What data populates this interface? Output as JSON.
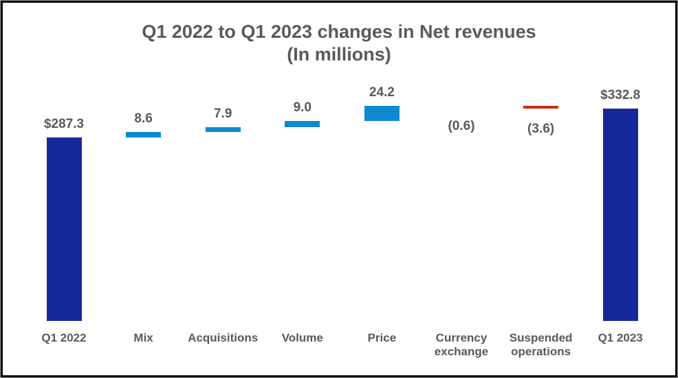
{
  "frame": {
    "background": "#ffffff",
    "border_color": "#0a0a0a"
  },
  "chart_data": {
    "type": "bar",
    "subtype": "waterfall",
    "title": "Q1 2022 to Q1 2023 changes in Net revenues",
    "subtitle": "(In millions)",
    "xlabel": "",
    "ylabel": "",
    "ylim": [
      0,
      360
    ],
    "grid": false,
    "legend": false,
    "axes_visible": false,
    "categories": [
      "Q1 2022",
      "Mix",
      "Acquisitions",
      "Volume",
      "Price",
      "Currency exchange",
      "Suspended operations",
      "Q1 2023"
    ],
    "bars": [
      {
        "category": "Q1 2022",
        "value": 287.3,
        "label": "$287.3",
        "kind": "total"
      },
      {
        "category": "Mix",
        "value": 8.6,
        "label": "8.6",
        "kind": "increase"
      },
      {
        "category": "Acquisitions",
        "value": 7.9,
        "label": "7.9",
        "kind": "increase"
      },
      {
        "category": "Volume",
        "value": 9.0,
        "label": "9.0",
        "kind": "increase"
      },
      {
        "category": "Price",
        "value": 24.2,
        "label": "24.2",
        "kind": "increase"
      },
      {
        "category": "Currency exchange",
        "value": -0.6,
        "label": "(0.6)",
        "kind": "decrease"
      },
      {
        "category": "Suspended operations",
        "value": -3.6,
        "label": "(3.6)",
        "kind": "decrease"
      },
      {
        "category": "Q1 2023",
        "value": 332.8,
        "label": "$332.8",
        "kind": "total"
      }
    ],
    "colors": {
      "total": "#17289B",
      "increase": "#0E88CE",
      "decrease": "#CC2B12",
      "label_text": "#595959"
    }
  }
}
